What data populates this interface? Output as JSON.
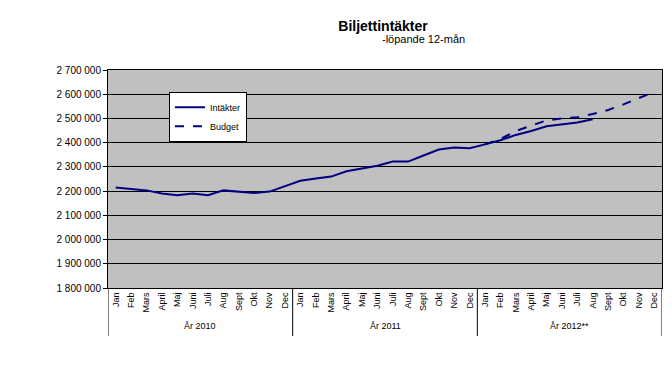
{
  "chart_data": {
    "type": "line",
    "title": "Biljettintäkter",
    "subtitle": "-löpande 12-mån",
    "categories": [
      "Jan",
      "Feb",
      "Mars",
      "April",
      "Maj",
      "Juni",
      "Juli",
      "Aug",
      "Sept",
      "Okt",
      "Nov",
      "Dec",
      "Jan",
      "Feb",
      "Mars",
      "April",
      "Maj",
      "Juni",
      "Juli",
      "Aug",
      "Sept",
      "Okt",
      "Nov",
      "Dec",
      "Jan",
      "Feb",
      "Mars",
      "April",
      "Maj",
      "Juni",
      "Juli",
      "Aug",
      "Sept",
      "Okt",
      "Nov",
      "Dec"
    ],
    "x_groups": [
      "År 2010",
      "År 2011",
      "År 2012**"
    ],
    "series": [
      {
        "name": "Intäkter",
        "color": "#000080",
        "line_style": "solid",
        "values": [
          2215000,
          2210000,
          2203000,
          2190000,
          2183000,
          2190000,
          2183000,
          2203000,
          2198000,
          2192000,
          2198000,
          2222000,
          2243000,
          2252000,
          2260000,
          2282000,
          2293000,
          2305000,
          2322000,
          2322000,
          2347000,
          2372000,
          2380000,
          2377000,
          2393000,
          2410000,
          2432000,
          2448000,
          2468000,
          2475000,
          2483000,
          2497000,
          null,
          null,
          null,
          null
        ]
      },
      {
        "name": "Budget",
        "color": "#000080",
        "line_style": "dashed",
        "values": [
          null,
          null,
          null,
          null,
          null,
          null,
          null,
          null,
          null,
          null,
          null,
          null,
          null,
          null,
          null,
          null,
          null,
          null,
          null,
          null,
          null,
          null,
          null,
          null,
          2393000,
          2415000,
          2448000,
          2470000,
          2492000,
          2500000,
          2505000,
          2518000,
          2535000,
          2558000,
          2583000,
          2610000
        ]
      }
    ],
    "ylim": [
      1800000,
      2700000
    ],
    "yticks": [
      {
        "value": 1800000,
        "label": "1 800 000"
      },
      {
        "value": 1900000,
        "label": "1 900 000"
      },
      {
        "value": 2000000,
        "label": "2 000 000"
      },
      {
        "value": 2100000,
        "label": "2 100 000"
      },
      {
        "value": 2200000,
        "label": "2 200 000"
      },
      {
        "value": 2300000,
        "label": "2 300 000"
      },
      {
        "value": 2400000,
        "label": "2 400 000"
      },
      {
        "value": 2500000,
        "label": "2 500 000"
      },
      {
        "value": 2600000,
        "label": "2 600 000"
      },
      {
        "value": 2700000,
        "label": "2 700 000"
      }
    ],
    "grid": true,
    "legend": "top-left"
  }
}
